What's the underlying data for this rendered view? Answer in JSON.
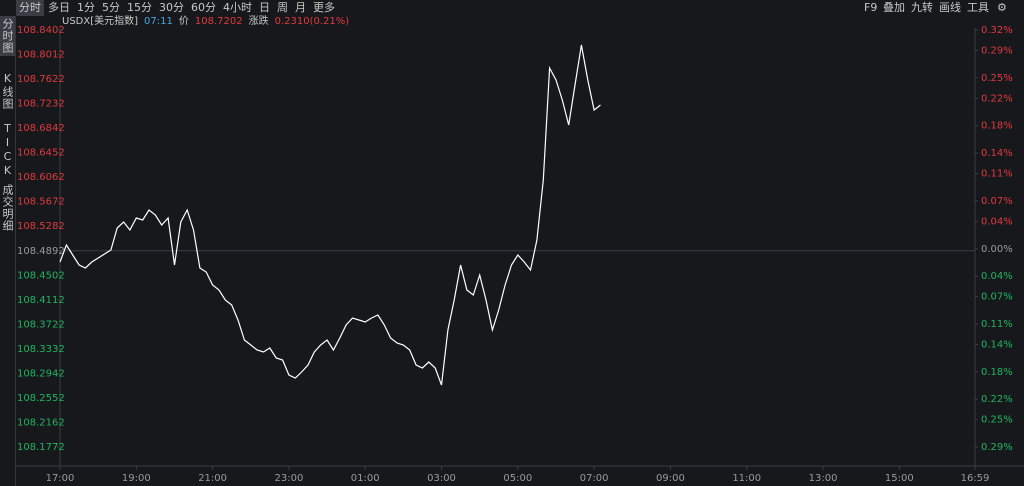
{
  "toolbar": {
    "periods": [
      "分时",
      "多日",
      "1分",
      "5分",
      "15分",
      "30分",
      "60分",
      "4小时",
      "日",
      "周",
      "月",
      "更多"
    ],
    "tools": [
      "F9",
      "叠加",
      "九转",
      "画线",
      "工具"
    ]
  },
  "sidebar": [
    "分时图",
    "K线图",
    "TICK",
    "成交明细"
  ],
  "quote": {
    "symbol": "USDX[美元指数]",
    "time": "07:11",
    "price_label": "价",
    "price": "108.7202",
    "change_label": "涨跌",
    "change": "0.2310(0.21%)"
  },
  "chart_data": {
    "type": "line",
    "color": "#ffffff",
    "x": [
      "17:00",
      "17:10",
      "17:20",
      "17:30",
      "17:40",
      "17:50",
      "18:00",
      "18:10",
      "18:20",
      "18:30",
      "18:40",
      "18:50",
      "19:00",
      "19:10",
      "19:20",
      "19:30",
      "19:40",
      "19:50",
      "20:00",
      "20:10",
      "20:20",
      "20:30",
      "20:40",
      "20:50",
      "21:00",
      "21:10",
      "21:20",
      "21:30",
      "21:40",
      "21:50",
      "22:00",
      "22:10",
      "22:20",
      "22:30",
      "22:40",
      "22:50",
      "23:00",
      "23:10",
      "23:20",
      "23:30",
      "23:40",
      "23:50",
      "00:00",
      "00:10",
      "00:20",
      "00:30",
      "00:40",
      "00:50",
      "01:00",
      "01:10",
      "01:20",
      "01:30",
      "01:40",
      "01:50",
      "02:00",
      "02:10",
      "02:20",
      "02:30",
      "02:40",
      "02:50",
      "03:00",
      "03:10",
      "03:20",
      "03:30",
      "03:40",
      "03:50",
      "04:00",
      "04:10",
      "04:20",
      "04:30",
      "04:40",
      "04:50",
      "05:00",
      "05:10",
      "05:20",
      "05:30",
      "05:40",
      "05:50",
      "06:00",
      "06:10",
      "06:20",
      "06:30",
      "06:40",
      "06:50",
      "07:00",
      "07:10"
    ],
    "values": [
      108.4713,
      108.4983,
      108.4824,
      108.4665,
      108.4618,
      108.4713,
      108.4777,
      108.484,
      108.4904,
      108.5254,
      108.5349,
      108.5222,
      108.5413,
      108.5381,
      108.554,
      108.546,
      108.5301,
      108.5413,
      108.4665,
      108.5349,
      108.554,
      108.5222,
      108.4618,
      108.4554,
      108.4347,
      108.4268,
      108.4109,
      108.4029,
      108.3791,
      108.3473,
      108.3393,
      108.3314,
      108.3282,
      108.3346,
      108.3187,
      108.3155,
      108.2916,
      108.2869,
      108.2964,
      108.3075,
      108.3282,
      108.3393,
      108.3473,
      108.3314,
      108.3505,
      108.3711,
      108.3823,
      108.3791,
      108.3759,
      108.3823,
      108.387,
      108.3711,
      108.3505,
      108.3425,
      108.3393,
      108.3314,
      108.3075,
      108.3028,
      108.3123,
      108.3028,
      108.2757,
      108.3632,
      108.4109,
      108.4665,
      108.4268,
      108.4188,
      108.4506,
      108.4109,
      108.3632,
      108.395,
      108.4347,
      108.4665,
      108.4824,
      108.4713,
      108.4586,
      108.5063,
      108.6017,
      108.7798,
      108.7607,
      108.7289,
      108.6891,
      108.7527,
      108.8163,
      108.7607,
      108.713,
      108.7209
    ],
    "xlim": [
      "17:00",
      "16:59"
    ],
    "xticks": [
      "17:00",
      "19:00",
      "21:00",
      "23:00",
      "01:00",
      "03:00",
      "05:00",
      "07:00",
      "09:00",
      "11:00",
      "13:00",
      "15:00",
      "16:59"
    ],
    "ylim": [
      108.1772,
      108.8402
    ],
    "yticks": [
      108.8402,
      108.8012,
      108.7622,
      108.7232,
      108.6842,
      108.6452,
      108.6062,
      108.5672,
      108.5282,
      108.4892,
      108.4502,
      108.4112,
      108.3722,
      108.3332,
      108.2942,
      108.2552,
      108.2162,
      108.1772
    ],
    "y2lim": [
      -0.29,
      0.32
    ],
    "y2ticks": [
      {
        "value": 0.32,
        "label": "0.32%"
      },
      {
        "value": 0.29,
        "label": "0.29%"
      },
      {
        "value": 0.25,
        "label": "0.25%"
      },
      {
        "value": 0.22,
        "label": "0.22%"
      },
      {
        "value": 0.18,
        "label": "0.18%"
      },
      {
        "value": 0.14,
        "label": "0.14%"
      },
      {
        "value": 0.11,
        "label": "0.11%"
      },
      {
        "value": 0.07,
        "label": "0.07%"
      },
      {
        "value": 0.04,
        "label": "0.04%"
      },
      {
        "value": 0,
        "label": "0.00%"
      },
      {
        "value": -0.04,
        "label": "0.04%"
      },
      {
        "value": -0.07,
        "label": "0.07%"
      },
      {
        "value": -0.11,
        "label": "0.11%"
      },
      {
        "value": -0.14,
        "label": "0.14%"
      },
      {
        "value": -0.18,
        "label": "0.18%"
      },
      {
        "value": -0.22,
        "label": "0.22%"
      },
      {
        "value": -0.25,
        "label": "0.25%"
      },
      {
        "value": -0.29,
        "label": "0.29%"
      }
    ]
  }
}
